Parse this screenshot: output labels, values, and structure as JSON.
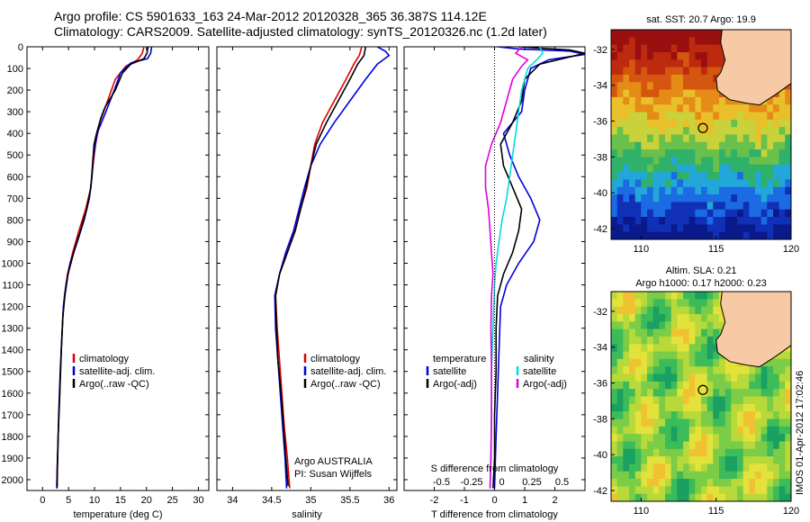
{
  "header": {
    "line1": "Argo profile: CS 5901633_163 24-Mar-2012 20120328_365 36.387S 114.12E",
    "line2": "Climatology: CARS2009. Satellite-adjusted climatology: synTS_20120326.nc (1.2d later)"
  },
  "credits": {
    "program": "Argo AUSTRALIA",
    "pi": "PI: Susan Wijffels",
    "timestamp": "IMOS 01-Apr-2012 17:02:46"
  },
  "colors": {
    "climatology": "#dd0000",
    "satellite": "#0000dd",
    "argo": "#000000",
    "cyan": "#00dddd",
    "magenta": "#dd00dd",
    "land": "#f7c9a4"
  },
  "chart_data": [
    {
      "type": "line",
      "id": "temperature",
      "xlabel": "temperature (deg C)",
      "xlim": [
        -3,
        32
      ],
      "xticks": [
        0,
        5,
        10,
        15,
        20,
        25,
        30
      ],
      "ylim": [
        2050,
        0
      ],
      "yticks": [
        0,
        100,
        200,
        300,
        400,
        500,
        600,
        700,
        800,
        900,
        1000,
        1100,
        1200,
        1300,
        1400,
        1500,
        1600,
        1700,
        1800,
        1900,
        2000
      ],
      "legend": [
        "climatology",
        "satellite-adj. clim.",
        "Argo(..raw -QC)"
      ],
      "series": [
        {
          "name": "climatology",
          "color": "#dd0000",
          "points": [
            [
              19.5,
              0
            ],
            [
              19.2,
              30
            ],
            [
              18.3,
              60
            ],
            [
              16.0,
              90
            ],
            [
              14.0,
              150
            ],
            [
              12.5,
              250
            ],
            [
              11.0,
              350
            ],
            [
              10.2,
              450
            ],
            [
              9.7,
              550
            ],
            [
              9.3,
              650
            ],
            [
              8.3,
              750
            ],
            [
              7.0,
              850
            ],
            [
              5.8,
              950
            ],
            [
              4.8,
              1050
            ],
            [
              4.2,
              1150
            ],
            [
              3.9,
              1250
            ],
            [
              3.6,
              1400
            ],
            [
              3.3,
              1600
            ],
            [
              3.0,
              1800
            ],
            [
              2.9,
              1900
            ],
            [
              2.8,
              2040
            ]
          ]
        },
        {
          "name": "satellite-adj. clim.",
          "color": "#0000dd",
          "points": [
            [
              21.0,
              0
            ],
            [
              20.8,
              30
            ],
            [
              20.2,
              55
            ],
            [
              17.0,
              75
            ],
            [
              15.0,
              120
            ],
            [
              13.8,
              200
            ],
            [
              12.2,
              300
            ],
            [
              10.5,
              400
            ],
            [
              9.8,
              500
            ],
            [
              9.5,
              600
            ],
            [
              9.0,
              700
            ],
            [
              8.0,
              800
            ],
            [
              6.7,
              900
            ],
            [
              5.3,
              1000
            ],
            [
              4.5,
              1100
            ],
            [
              4.0,
              1200
            ],
            [
              3.7,
              1350
            ],
            [
              3.4,
              1500
            ],
            [
              3.1,
              1700
            ],
            [
              2.9,
              1900
            ],
            [
              2.7,
              2040
            ]
          ]
        },
        {
          "name": "Argo(..raw -QC)",
          "color": "#000000",
          "points": [
            [
              20.3,
              0
            ],
            [
              20.1,
              30
            ],
            [
              19.5,
              55
            ],
            [
              17.0,
              80
            ],
            [
              15.4,
              120
            ],
            [
              14.0,
              200
            ],
            [
              12.0,
              280
            ],
            [
              11.2,
              330
            ],
            [
              10.4,
              400
            ],
            [
              9.9,
              450
            ],
            [
              9.6,
              550
            ],
            [
              9.3,
              650
            ],
            [
              8.5,
              750
            ],
            [
              7.3,
              850
            ],
            [
              6.0,
              950
            ],
            [
              4.9,
              1050
            ],
            [
              4.3,
              1150
            ],
            [
              3.9,
              1250
            ],
            [
              3.6,
              1400
            ],
            [
              3.3,
              1600
            ],
            [
              3.0,
              1800
            ],
            [
              2.8,
              1950
            ],
            [
              2.8,
              2030
            ]
          ]
        }
      ]
    },
    {
      "type": "line",
      "id": "salinity",
      "xlabel": "salinity",
      "xlim": [
        33.8,
        36.1
      ],
      "xticks": [
        34,
        34.5,
        35,
        35.5,
        36
      ],
      "ylim": [
        2050,
        0
      ],
      "legend": [
        "climatology",
        "satellite-adj. clim.",
        "Argo(..raw -QC)"
      ],
      "series": [
        {
          "name": "climatology",
          "color": "#dd0000",
          "points": [
            [
              35.65,
              0
            ],
            [
              35.62,
              40
            ],
            [
              35.55,
              80
            ],
            [
              35.45,
              150
            ],
            [
              35.3,
              250
            ],
            [
              35.15,
              350
            ],
            [
              35.05,
              450
            ],
            [
              35.0,
              550
            ],
            [
              34.95,
              650
            ],
            [
              34.87,
              750
            ],
            [
              34.8,
              850
            ],
            [
              34.7,
              950
            ],
            [
              34.6,
              1050
            ],
            [
              34.55,
              1150
            ],
            [
              34.57,
              1300
            ],
            [
              34.6,
              1450
            ],
            [
              34.63,
              1600
            ],
            [
              34.66,
              1750
            ],
            [
              34.7,
              1900
            ],
            [
              34.73,
              2040
            ]
          ]
        },
        {
          "name": "satellite-adj. clim.",
          "color": "#0000dd",
          "points": [
            [
              35.85,
              0
            ],
            [
              35.95,
              20
            ],
            [
              36.0,
              40
            ],
            [
              35.85,
              80
            ],
            [
              35.7,
              150
            ],
            [
              35.5,
              250
            ],
            [
              35.3,
              350
            ],
            [
              35.12,
              450
            ],
            [
              35.0,
              550
            ],
            [
              34.92,
              650
            ],
            [
              34.85,
              750
            ],
            [
              34.78,
              850
            ],
            [
              34.68,
              950
            ],
            [
              34.6,
              1050
            ],
            [
              34.54,
              1150
            ],
            [
              34.55,
              1300
            ],
            [
              34.58,
              1450
            ],
            [
              34.61,
              1600
            ],
            [
              34.64,
              1750
            ],
            [
              34.67,
              1900
            ],
            [
              34.69,
              2040
            ]
          ]
        },
        {
          "name": "Argo(..raw -QC)",
          "color": "#000000",
          "points": [
            [
              35.7,
              0
            ],
            [
              35.68,
              40
            ],
            [
              35.6,
              80
            ],
            [
              35.5,
              150
            ],
            [
              35.35,
              250
            ],
            [
              35.2,
              350
            ],
            [
              35.07,
              450
            ],
            [
              35.0,
              550
            ],
            [
              34.94,
              650
            ],
            [
              34.87,
              750
            ],
            [
              34.8,
              850
            ],
            [
              34.7,
              950
            ],
            [
              34.6,
              1050
            ],
            [
              34.55,
              1150
            ],
            [
              34.56,
              1300
            ],
            [
              34.58,
              1450
            ],
            [
              34.62,
              1600
            ],
            [
              34.65,
              1750
            ],
            [
              34.68,
              1900
            ],
            [
              34.71,
              2030
            ]
          ]
        }
      ]
    },
    {
      "type": "line",
      "id": "difference",
      "xlabel": "T difference from climatology",
      "xlabel2": "S difference from climatology",
      "xlim": [
        -3,
        3
      ],
      "xticks": [
        -2,
        -1,
        0,
        1,
        2
      ],
      "xticks_top": [
        "-0.5",
        "-0.25",
        "0",
        "0.25",
        "0.5"
      ],
      "ylim": [
        2050,
        0
      ],
      "legend_temperature": {
        "title": "temperature",
        "items": [
          "satellite",
          "Argo(-adj)"
        ]
      },
      "legend_salinity": {
        "title": "salinity",
        "items": [
          "satellite",
          "Argo(-adj)"
        ]
      },
      "series": [
        {
          "name": "satellite",
          "group": "temperature",
          "color": "#0000dd",
          "points": [
            [
              0.1,
              0
            ],
            [
              0.8,
              10
            ],
            [
              2.5,
              20
            ],
            [
              3.0,
              35
            ],
            [
              1.8,
              60
            ],
            [
              1.2,
              100
            ],
            [
              1.0,
              200
            ],
            [
              0.9,
              300
            ],
            [
              0.3,
              400
            ],
            [
              0.5,
              500
            ],
            [
              0.8,
              600
            ],
            [
              1.2,
              700
            ],
            [
              1.5,
              800
            ],
            [
              1.3,
              900
            ],
            [
              0.8,
              1000
            ],
            [
              0.4,
              1100
            ],
            [
              0.2,
              1200
            ],
            [
              0.15,
              1400
            ],
            [
              0.1,
              1600
            ],
            [
              0.05,
              1800
            ],
            [
              0.0,
              2040
            ]
          ]
        },
        {
          "name": "Argo(-adj)",
          "group": "temperature",
          "color": "#000000",
          "points": [
            [
              0.8,
              0
            ],
            [
              2.5,
              15
            ],
            [
              3.0,
              30
            ],
            [
              1.5,
              80
            ],
            [
              1.0,
              150
            ],
            [
              0.9,
              250
            ],
            [
              0.6,
              350
            ],
            [
              0.2,
              450
            ],
            [
              0.3,
              550
            ],
            [
              0.6,
              650
            ],
            [
              0.9,
              750
            ],
            [
              0.8,
              850
            ],
            [
              0.6,
              950
            ],
            [
              0.3,
              1050
            ],
            [
              0.1,
              1150
            ],
            [
              0.05,
              1300
            ],
            [
              0.05,
              1500
            ],
            [
              0.0,
              1700
            ],
            [
              0.0,
              1900
            ],
            [
              -0.05,
              2040
            ]
          ]
        },
        {
          "name": "satellite",
          "group": "salinity",
          "color": "#00dddd",
          "points": [
            [
              1.5,
              0
            ],
            [
              1.6,
              30
            ],
            [
              1.4,
              60
            ],
            [
              1.1,
              100
            ],
            [
              0.9,
              200
            ],
            [
              0.8,
              300
            ],
            [
              0.7,
              400
            ],
            [
              0.6,
              500
            ],
            [
              0.5,
              600
            ],
            [
              0.4,
              700
            ],
            [
              0.25,
              800
            ],
            [
              0.15,
              900
            ],
            [
              0.05,
              1000
            ],
            [
              0.0,
              1100
            ],
            [
              -0.05,
              1300
            ],
            [
              -0.1,
              1500
            ],
            [
              -0.1,
              1700
            ],
            [
              -0.12,
              1900
            ],
            [
              -0.15,
              2040
            ]
          ]
        },
        {
          "name": "Argo(-adj)",
          "group": "salinity",
          "color": "#dd00dd",
          "points": [
            [
              0.9,
              0
            ],
            [
              0.7,
              30
            ],
            [
              1.1,
              60
            ],
            [
              0.9,
              90
            ],
            [
              0.6,
              150
            ],
            [
              0.4,
              250
            ],
            [
              0.2,
              350
            ],
            [
              -0.1,
              450
            ],
            [
              -0.3,
              550
            ],
            [
              -0.3,
              650
            ],
            [
              -0.2,
              750
            ],
            [
              -0.15,
              850
            ],
            [
              -0.1,
              950
            ],
            [
              -0.05,
              1050
            ],
            [
              -0.1,
              1150
            ],
            [
              -0.12,
              1300
            ],
            [
              -0.1,
              1500
            ],
            [
              -0.1,
              1700
            ],
            [
              -0.12,
              1900
            ],
            [
              -0.15,
              2040
            ]
          ]
        }
      ]
    },
    {
      "type": "heatmap",
      "id": "sst_map",
      "title": "sat. SST: 20.7  Argo: 19.9",
      "xlim": [
        108,
        120
      ],
      "ylim": [
        -42.6,
        -30.9
      ],
      "xticks": [
        110,
        115,
        120
      ],
      "yticks": [
        -32,
        -34,
        -36,
        -38,
        -40,
        -42
      ],
      "marker": [
        114.12,
        -36.387
      ]
    },
    {
      "type": "heatmap",
      "id": "sla_map",
      "title": "Altim. SLA: 0.21",
      "subtitle": "Argo h1000: 0.17 h2000: 0.23",
      "xlim": [
        108,
        120
      ],
      "ylim": [
        -42.6,
        -30.9
      ],
      "xticks": [
        110,
        115,
        120
      ],
      "yticks": [
        -32,
        -34,
        -36,
        -38,
        -40,
        -42
      ],
      "marker": [
        114.12,
        -36.387
      ]
    }
  ]
}
